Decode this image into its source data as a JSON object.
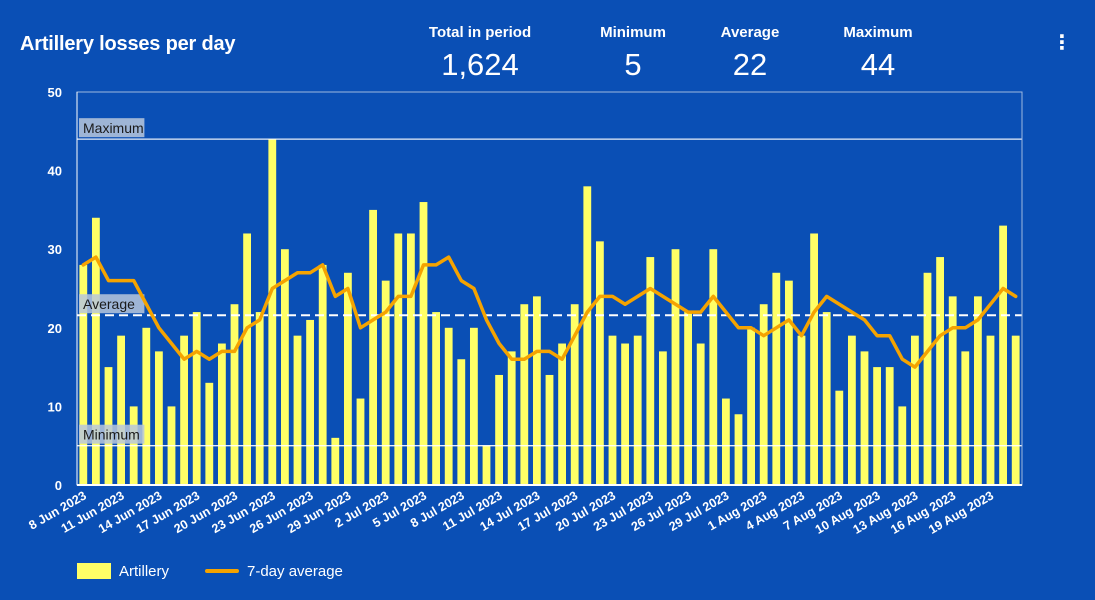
{
  "header": {
    "title": "Artillery losses per day",
    "menu_icon": "more-vert-icon"
  },
  "stats": [
    {
      "label": "Total in period",
      "value": "1,624"
    },
    {
      "label": "Minimum",
      "value": "5"
    },
    {
      "label": "Average",
      "value": "22"
    },
    {
      "label": "Maximum",
      "value": "44"
    }
  ],
  "legend": {
    "bars": "Artillery",
    "line": "7-day average"
  },
  "colors": {
    "background": "#0a4fb5",
    "bar": "#ffff66",
    "line": "#f5a300",
    "axis": "#ffffff"
  },
  "chart_data": {
    "type": "bar",
    "title": "Artillery losses per day",
    "xlabel": "",
    "ylabel": "",
    "ylim": [
      0,
      50
    ],
    "yticks": [
      0,
      10,
      20,
      30,
      40,
      50
    ],
    "categories": [
      "8 Jun 2023",
      "9 Jun 2023",
      "10 Jun 2023",
      "11 Jun 2023",
      "12 Jun 2023",
      "13 Jun 2023",
      "14 Jun 2023",
      "15 Jun 2023",
      "16 Jun 2023",
      "17 Jun 2023",
      "18 Jun 2023",
      "19 Jun 2023",
      "20 Jun 2023",
      "21 Jun 2023",
      "22 Jun 2023",
      "23 Jun 2023",
      "24 Jun 2023",
      "25 Jun 2023",
      "26 Jun 2023",
      "27 Jun 2023",
      "28 Jun 2023",
      "29 Jun 2023",
      "30 Jun 2023",
      "1 Jul 2023",
      "2 Jul 2023",
      "3 Jul 2023",
      "4 Jul 2023",
      "5 Jul 2023",
      "6 Jul 2023",
      "7 Jul 2023",
      "8 Jul 2023",
      "9 Jul 2023",
      "10 Jul 2023",
      "11 Jul 2023",
      "12 Jul 2023",
      "13 Jul 2023",
      "14 Jul 2023",
      "15 Jul 2023",
      "16 Jul 2023",
      "17 Jul 2023",
      "18 Jul 2023",
      "19 Jul 2023",
      "20 Jul 2023",
      "21 Jul 2023",
      "22 Jul 2023",
      "23 Jul 2023",
      "24 Jul 2023",
      "25 Jul 2023",
      "26 Jul 2023",
      "27 Jul 2023",
      "28 Jul 2023",
      "29 Jul 2023",
      "30 Jul 2023",
      "31 Jul 2023",
      "1 Aug 2023",
      "2 Aug 2023",
      "3 Aug 2023",
      "4 Aug 2023",
      "5 Aug 2023",
      "6 Aug 2023",
      "7 Aug 2023",
      "8 Aug 2023",
      "9 Aug 2023",
      "10 Aug 2023",
      "11 Aug 2023",
      "12 Aug 2023",
      "13 Aug 2023",
      "14 Aug 2023",
      "15 Aug 2023",
      "16 Aug 2023",
      "17 Aug 2023",
      "18 Aug 2023",
      "19 Aug 2023",
      "20 Aug 2023",
      "21 Aug 2023"
    ],
    "xtick_labels": [
      "8 Jun 2023",
      "11 Jun 2023",
      "14 Jun 2023",
      "17 Jun 2023",
      "20 Jun 2023",
      "23 Jun 2023",
      "26 Jun 2023",
      "29 Jun 2023",
      "2 Jul 2023",
      "5 Jul 2023",
      "8 Jul 2023",
      "11 Jul 2023",
      "14 Jul 2023",
      "17 Jul 2023",
      "20 Jul 2023",
      "23 Jul 2023",
      "26 Jul 2023",
      "29 Jul 2023",
      "1 Aug 2023",
      "4 Aug 2023",
      "7 Aug 2023",
      "10 Aug 2023",
      "13 Aug 2023",
      "16 Aug 2023",
      "19 Aug 2023"
    ],
    "series": [
      {
        "name": "Artillery",
        "type": "bar",
        "values": [
          28,
          34,
          15,
          19,
          10,
          20,
          17,
          10,
          19,
          22,
          13,
          18,
          23,
          32,
          22,
          44,
          30,
          19,
          21,
          28,
          6,
          27,
          11,
          35,
          26,
          32,
          32,
          36,
          22,
          20,
          16,
          20,
          5,
          14,
          17,
          23,
          24,
          14,
          18,
          23,
          38,
          31,
          19,
          18,
          19,
          29,
          17,
          30,
          22,
          18,
          30,
          11,
          9,
          20,
          23,
          27,
          26,
          19,
          32,
          22,
          12,
          19,
          17,
          15,
          15,
          10,
          19,
          27,
          29,
          24,
          17,
          24,
          19,
          33,
          19
        ]
      },
      {
        "name": "7-day average",
        "type": "line",
        "values": [
          28,
          29,
          26,
          26,
          26,
          23,
          20,
          18,
          16,
          17,
          16,
          17,
          17,
          20,
          21,
          25,
          26,
          27,
          27,
          28,
          24,
          25,
          20,
          21,
          22,
          24,
          24,
          28,
          28,
          29,
          26,
          25,
          21,
          18,
          16,
          16,
          17,
          17,
          16,
          19,
          22,
          24,
          24,
          23,
          24,
          25,
          24,
          23,
          22,
          22,
          24,
          22,
          20,
          20,
          19,
          20,
          21,
          19,
          22,
          24,
          23,
          22,
          21,
          19,
          19,
          16,
          15,
          17,
          19,
          20,
          20,
          21,
          23,
          25,
          24
        ]
      }
    ],
    "reference_lines": [
      {
        "label": "Maximum",
        "value": 44
      },
      {
        "label": "Average",
        "value": 21.6
      },
      {
        "label": "Minimum",
        "value": 5
      }
    ]
  }
}
